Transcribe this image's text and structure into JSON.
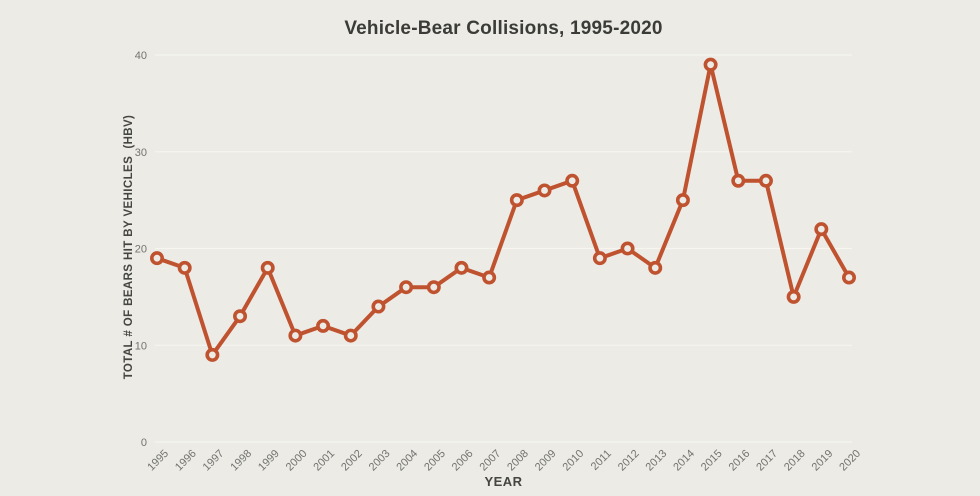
{
  "page": {
    "background_color": "#ECEBE6"
  },
  "chart_data": {
    "type": "line",
    "title": "Vehicle-Bear Collisions, 1995-2020",
    "xlabel": "YEAR",
    "ylabel": "TOTAL # OF BEARS HIT BY VEHICLES  (HBV)",
    "categories": [
      "1995",
      "1996",
      "1997",
      "1998",
      "1999",
      "2000",
      "2001",
      "2002",
      "2003",
      "2004",
      "2005",
      "2006",
      "2007",
      "2008",
      "2009",
      "2010",
      "2011",
      "2012",
      "2013",
      "2014",
      "2015",
      "2016",
      "2017",
      "2018",
      "2019",
      "2020"
    ],
    "values": [
      19,
      18,
      9,
      13,
      18,
      11,
      12,
      11,
      14,
      16,
      16,
      18,
      17,
      25,
      26,
      27,
      19,
      20,
      18,
      25,
      39,
      27,
      27,
      15,
      22,
      17
    ],
    "ylim": [
      0,
      40
    ],
    "yticks": [
      0,
      10,
      20,
      30,
      40
    ],
    "grid": true,
    "legend": false,
    "marker": "open-circle",
    "colors": {
      "line": "#C0532F",
      "marker_stroke": "#C0532F",
      "marker_fill": "#ECEBE6",
      "gridline": "#F6F5F0",
      "title_text": "#3B3B38",
      "axis_label_text": "#454541",
      "tick_text": "#73736F",
      "background": "#ECEBE6"
    }
  }
}
